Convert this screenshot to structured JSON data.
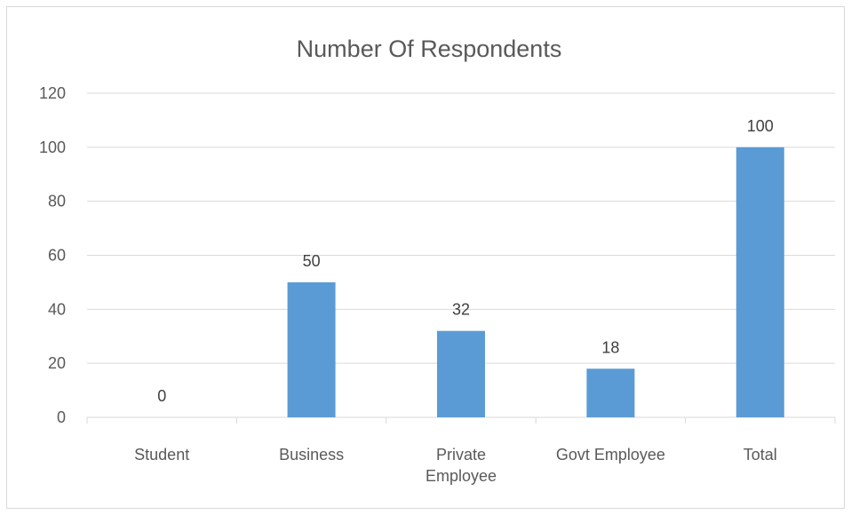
{
  "chart_data": {
    "type": "bar",
    "title": "Number Of Respondents",
    "categories": [
      "Student",
      "Business",
      "Private Employee",
      "Govt Employee",
      "Total"
    ],
    "category_lines": [
      [
        "Student"
      ],
      [
        "Business"
      ],
      [
        "Private",
        "Employee"
      ],
      [
        "Govt Employee"
      ],
      [
        "Total"
      ]
    ],
    "values": [
      0,
      50,
      32,
      18,
      100
    ],
    "data_labels": [
      "0",
      "50",
      "32",
      "18",
      "100"
    ],
    "xlabel": "",
    "ylabel": "",
    "ylim": [
      0,
      120
    ],
    "yticks": [
      0,
      20,
      40,
      60,
      80,
      100,
      120
    ],
    "grid": true,
    "legend": "none",
    "colors": {
      "bar": "#5b9bd5",
      "grid": "#d9d9d9",
      "text": "#595959",
      "label": "#404040"
    }
  }
}
